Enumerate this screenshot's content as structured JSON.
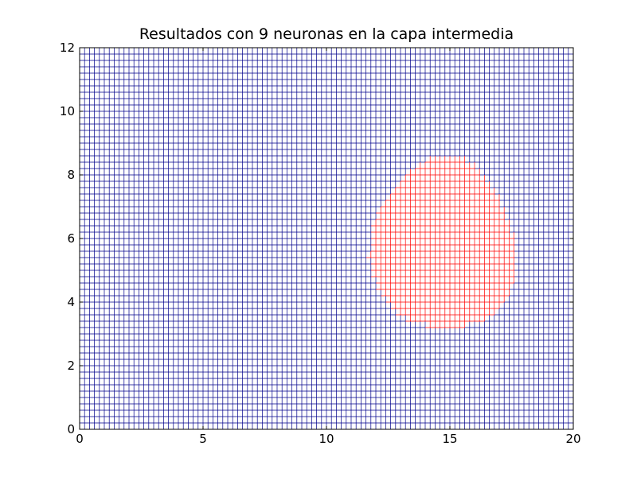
{
  "chart_data": {
    "type": "scatter",
    "title": "Resultados con 9 neuronas en la capa intermedia",
    "xlabel": "",
    "ylabel": "",
    "xlim": [
      0,
      20
    ],
    "ylim": [
      0,
      12
    ],
    "xticks": [
      0,
      5,
      10,
      15,
      20
    ],
    "yticks": [
      0,
      2,
      4,
      6,
      8,
      10,
      12
    ],
    "grid": false,
    "legend": "none",
    "sampling": {
      "x_step": 0.2,
      "y_step": 0.2
    },
    "series": [
      {
        "color": "#00008b",
        "description": "class 0 (grid points outside region)"
      },
      {
        "color": "#ff0000",
        "description": "class 1 (grid points inside region)"
      }
    ],
    "region_class_1": {
      "shape": "rounded blob",
      "outline": [
        [
          15.0,
          8.7
        ],
        [
          16.0,
          8.4
        ],
        [
          16.9,
          7.5
        ],
        [
          17.4,
          6.5
        ],
        [
          17.7,
          5.5
        ],
        [
          17.6,
          4.7
        ],
        [
          17.2,
          4.0
        ],
        [
          16.5,
          3.5
        ],
        [
          15.5,
          3.25
        ],
        [
          14.5,
          3.25
        ],
        [
          13.5,
          3.35
        ],
        [
          12.6,
          3.8
        ],
        [
          12.0,
          4.5
        ],
        [
          11.7,
          5.5
        ],
        [
          11.8,
          6.5
        ],
        [
          12.4,
          7.4
        ],
        [
          13.3,
          8.1
        ],
        [
          14.2,
          8.6
        ]
      ]
    }
  }
}
